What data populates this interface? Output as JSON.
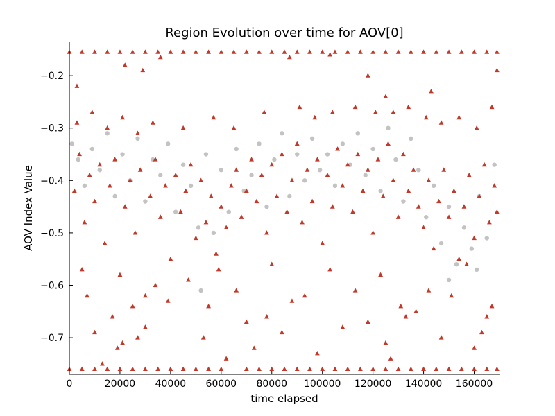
{
  "chart_data": {
    "type": "scatter",
    "title": "Region Evolution over time for AOV[0]",
    "xlabel": "time elapsed",
    "ylabel": "AOV Index Value",
    "xlim": [
      0,
      170000
    ],
    "ylim": [
      -0.77,
      -0.135
    ],
    "x_ticks": [
      0,
      20000,
      40000,
      60000,
      80000,
      100000,
      120000,
      140000,
      160000
    ],
    "x_tick_labels": [
      "0",
      "20000",
      "40000",
      "60000",
      "80000",
      "100000",
      "120000",
      "140000",
      "160000"
    ],
    "y_ticks": [
      -0.7,
      -0.6,
      -0.5,
      -0.4,
      -0.3,
      -0.2
    ],
    "y_tick_labels": [
      "−0.7",
      "−0.6",
      "−0.5",
      "−0.4",
      "−0.3",
      "−0.2"
    ],
    "grid": false,
    "spines": "left-bottom",
    "colors": {
      "background_series": "#c3c3c3",
      "foreground_series": "#c0392b"
    },
    "series": [
      {
        "marker": "circle",
        "color": "#c3c3c3",
        "points": [
          [
            1000,
            -0.33
          ],
          [
            3500,
            -0.36
          ],
          [
            6000,
            -0.41
          ],
          [
            9000,
            -0.34
          ],
          [
            12000,
            -0.38
          ],
          [
            15000,
            -0.31
          ],
          [
            18000,
            -0.43
          ],
          [
            21000,
            -0.35
          ],
          [
            24000,
            -0.4
          ],
          [
            27000,
            -0.32
          ],
          [
            30000,
            -0.44
          ],
          [
            33000,
            -0.36
          ],
          [
            36000,
            -0.39
          ],
          [
            39000,
            -0.33
          ],
          [
            42000,
            -0.46
          ],
          [
            45000,
            -0.37
          ],
          [
            48000,
            -0.41
          ],
          [
            51000,
            -0.49
          ],
          [
            54000,
            -0.35
          ],
          [
            57000,
            -0.5
          ],
          [
            60000,
            -0.38
          ],
          [
            63000,
            -0.46
          ],
          [
            66000,
            -0.34
          ],
          [
            69000,
            -0.42
          ],
          [
            72000,
            -0.39
          ],
          [
            75000,
            -0.33
          ],
          [
            78000,
            -0.45
          ],
          [
            81000,
            -0.36
          ],
          [
            84000,
            -0.31
          ],
          [
            87000,
            -0.43
          ],
          [
            90000,
            -0.35
          ],
          [
            93000,
            -0.4
          ],
          [
            96000,
            -0.32
          ],
          [
            99000,
            -0.38
          ],
          [
            102000,
            -0.35
          ],
          [
            105000,
            -0.41
          ],
          [
            108000,
            -0.33
          ],
          [
            111000,
            -0.37
          ],
          [
            114000,
            -0.31
          ],
          [
            117000,
            -0.39
          ],
          [
            120000,
            -0.34
          ],
          [
            123000,
            -0.42
          ],
          [
            126000,
            -0.3
          ],
          [
            129000,
            -0.36
          ],
          [
            132000,
            -0.44
          ],
          [
            135000,
            -0.32
          ],
          [
            138000,
            -0.38
          ],
          [
            141000,
            -0.47
          ],
          [
            144000,
            -0.41
          ],
          [
            147000,
            -0.52
          ],
          [
            150000,
            -0.45
          ],
          [
            153000,
            -0.56
          ],
          [
            156000,
            -0.49
          ],
          [
            159000,
            -0.53
          ],
          [
            162000,
            -0.43
          ],
          [
            165000,
            -0.51
          ],
          [
            168000,
            -0.37
          ],
          [
            52000,
            -0.61
          ],
          [
            150000,
            -0.59
          ],
          [
            161000,
            -0.57
          ]
        ]
      },
      {
        "marker": "triangle",
        "color": "#c0392b",
        "points": [
          [
            2000,
            -0.42
          ],
          [
            4000,
            -0.35
          ],
          [
            6000,
            -0.48
          ],
          [
            8000,
            -0.39
          ],
          [
            10000,
            -0.44
          ],
          [
            12000,
            -0.37
          ],
          [
            14000,
            -0.52
          ],
          [
            16000,
            -0.41
          ],
          [
            18000,
            -0.36
          ],
          [
            20000,
            -0.58
          ],
          [
            22000,
            -0.45
          ],
          [
            24000,
            -0.4
          ],
          [
            26000,
            -0.5
          ],
          [
            28000,
            -0.38
          ],
          [
            30000,
            -0.62
          ],
          [
            32000,
            -0.43
          ],
          [
            34000,
            -0.36
          ],
          [
            36000,
            -0.47
          ],
          [
            38000,
            -0.41
          ],
          [
            40000,
            -0.55
          ],
          [
            42000,
            -0.39
          ],
          [
            44000,
            -0.46
          ],
          [
            46000,
            -0.42
          ],
          [
            48000,
            -0.37
          ],
          [
            50000,
            -0.51
          ],
          [
            52000,
            -0.4
          ],
          [
            54000,
            -0.48
          ],
          [
            56000,
            -0.43
          ],
          [
            58000,
            -0.54
          ],
          [
            60000,
            -0.45
          ],
          [
            62000,
            -0.49
          ],
          [
            64000,
            -0.41
          ],
          [
            66000,
            -0.38
          ],
          [
            68000,
            -0.47
          ],
          [
            70000,
            -0.42
          ],
          [
            72000,
            -0.36
          ],
          [
            74000,
            -0.44
          ],
          [
            76000,
            -0.39
          ],
          [
            78000,
            -0.5
          ],
          [
            80000,
            -0.37
          ],
          [
            82000,
            -0.43
          ],
          [
            84000,
            -0.35
          ],
          [
            86000,
            -0.46
          ],
          [
            88000,
            -0.4
          ],
          [
            90000,
            -0.33
          ],
          [
            92000,
            -0.48
          ],
          [
            94000,
            -0.38
          ],
          [
            96000,
            -0.44
          ],
          [
            98000,
            -0.36
          ],
          [
            100000,
            -0.52
          ],
          [
            102000,
            -0.39
          ],
          [
            104000,
            -0.45
          ],
          [
            106000,
            -0.34
          ],
          [
            108000,
            -0.41
          ],
          [
            110000,
            -0.37
          ],
          [
            112000,
            -0.46
          ],
          [
            114000,
            -0.35
          ],
          [
            116000,
            -0.42
          ],
          [
            118000,
            -0.38
          ],
          [
            120000,
            -0.5
          ],
          [
            122000,
            -0.36
          ],
          [
            124000,
            -0.43
          ],
          [
            126000,
            -0.33
          ],
          [
            128000,
            -0.4
          ],
          [
            130000,
            -0.47
          ],
          [
            132000,
            -0.35
          ],
          [
            134000,
            -0.42
          ],
          [
            136000,
            -0.38
          ],
          [
            138000,
            -0.45
          ],
          [
            140000,
            -0.49
          ],
          [
            142000,
            -0.4
          ],
          [
            144000,
            -0.53
          ],
          [
            146000,
            -0.44
          ],
          [
            148000,
            -0.38
          ],
          [
            150000,
            -0.47
          ],
          [
            152000,
            -0.42
          ],
          [
            154000,
            -0.55
          ],
          [
            156000,
            -0.45
          ],
          [
            158000,
            -0.39
          ],
          [
            160000,
            -0.51
          ],
          [
            162000,
            -0.43
          ],
          [
            164000,
            -0.37
          ],
          [
            166000,
            -0.48
          ],
          [
            168000,
            -0.41
          ],
          [
            169000,
            -0.46
          ],
          [
            3000,
            -0.29
          ],
          [
            9000,
            -0.27
          ],
          [
            15000,
            -0.3
          ],
          [
            21000,
            -0.28
          ],
          [
            27000,
            -0.31
          ],
          [
            33000,
            -0.29
          ],
          [
            45000,
            -0.3
          ],
          [
            57000,
            -0.28
          ],
          [
            65000,
            -0.3
          ],
          [
            77000,
            -0.27
          ],
          [
            91000,
            -0.26
          ],
          [
            97000,
            -0.28
          ],
          [
            104000,
            -0.27
          ],
          [
            113000,
            -0.26
          ],
          [
            121000,
            -0.27
          ],
          [
            125000,
            -0.24
          ],
          [
            128000,
            -0.27
          ],
          [
            134000,
            -0.26
          ],
          [
            141000,
            -0.28
          ],
          [
            147000,
            -0.29
          ],
          [
            154000,
            -0.28
          ],
          [
            161000,
            -0.3
          ],
          [
            167000,
            -0.26
          ],
          [
            3000,
            -0.22
          ],
          [
            22000,
            -0.18
          ],
          [
            29000,
            -0.19
          ],
          [
            36000,
            -0.165
          ],
          [
            87000,
            -0.165
          ],
          [
            103000,
            -0.16
          ],
          [
            118000,
            -0.2
          ],
          [
            143000,
            -0.23
          ],
          [
            169000,
            -0.19
          ],
          [
            5000,
            -0.57
          ],
          [
            7000,
            -0.62
          ],
          [
            10000,
            -0.69
          ],
          [
            13000,
            -0.75
          ],
          [
            17000,
            -0.66
          ],
          [
            19000,
            -0.72
          ],
          [
            21000,
            -0.71
          ],
          [
            25000,
            -0.64
          ],
          [
            27000,
            -0.7
          ],
          [
            30000,
            -0.68
          ],
          [
            34000,
            -0.6
          ],
          [
            39000,
            -0.63
          ],
          [
            47000,
            -0.59
          ],
          [
            53000,
            -0.7
          ],
          [
            55000,
            -0.64
          ],
          [
            59000,
            -0.57
          ],
          [
            62000,
            -0.74
          ],
          [
            66000,
            -0.61
          ],
          [
            70000,
            -0.67
          ],
          [
            73000,
            -0.72
          ],
          [
            78000,
            -0.66
          ],
          [
            80000,
            -0.56
          ],
          [
            84000,
            -0.69
          ],
          [
            88000,
            -0.63
          ],
          [
            93000,
            -0.62
          ],
          [
            98000,
            -0.73
          ],
          [
            103000,
            -0.57
          ],
          [
            108000,
            -0.68
          ],
          [
            113000,
            -0.61
          ],
          [
            118000,
            -0.67
          ],
          [
            123000,
            -0.58
          ],
          [
            125000,
            -0.71
          ],
          [
            127000,
            -0.74
          ],
          [
            131000,
            -0.64
          ],
          [
            133000,
            -0.66
          ],
          [
            137000,
            -0.65
          ],
          [
            142000,
            -0.61
          ],
          [
            147000,
            -0.7
          ],
          [
            151000,
            -0.62
          ],
          [
            157000,
            -0.56
          ],
          [
            160000,
            -0.72
          ],
          [
            163000,
            -0.69
          ],
          [
            165000,
            -0.66
          ],
          [
            167000,
            -0.64
          ],
          [
            0,
            -0.155
          ],
          [
            5000,
            -0.155
          ],
          [
            10000,
            -0.155
          ],
          [
            15000,
            -0.155
          ],
          [
            20000,
            -0.155
          ],
          [
            25000,
            -0.155
          ],
          [
            30000,
            -0.155
          ],
          [
            35000,
            -0.155
          ],
          [
            40000,
            -0.155
          ],
          [
            45000,
            -0.155
          ],
          [
            50000,
            -0.155
          ],
          [
            55000,
            -0.155
          ],
          [
            60000,
            -0.155
          ],
          [
            65000,
            -0.155
          ],
          [
            70000,
            -0.155
          ],
          [
            75000,
            -0.155
          ],
          [
            80000,
            -0.155
          ],
          [
            85000,
            -0.155
          ],
          [
            90000,
            -0.155
          ],
          [
            95000,
            -0.155
          ],
          [
            100000,
            -0.155
          ],
          [
            105000,
            -0.155
          ],
          [
            110000,
            -0.155
          ],
          [
            115000,
            -0.155
          ],
          [
            120000,
            -0.155
          ],
          [
            125000,
            -0.155
          ],
          [
            130000,
            -0.155
          ],
          [
            135000,
            -0.155
          ],
          [
            140000,
            -0.155
          ],
          [
            145000,
            -0.155
          ],
          [
            150000,
            -0.155
          ],
          [
            155000,
            -0.155
          ],
          [
            160000,
            -0.155
          ],
          [
            165000,
            -0.155
          ],
          [
            169000,
            -0.155
          ],
          [
            0,
            -0.76
          ],
          [
            5000,
            -0.76
          ],
          [
            10000,
            -0.76
          ],
          [
            15000,
            -0.76
          ],
          [
            20000,
            -0.76
          ],
          [
            25000,
            -0.76
          ],
          [
            30000,
            -0.76
          ],
          [
            35000,
            -0.76
          ],
          [
            40000,
            -0.76
          ],
          [
            45000,
            -0.76
          ],
          [
            50000,
            -0.76
          ],
          [
            55000,
            -0.76
          ],
          [
            60000,
            -0.76
          ],
          [
            70000,
            -0.76
          ],
          [
            75000,
            -0.76
          ],
          [
            80000,
            -0.76
          ],
          [
            85000,
            -0.76
          ],
          [
            90000,
            -0.76
          ],
          [
            95000,
            -0.76
          ],
          [
            100000,
            -0.76
          ],
          [
            105000,
            -0.76
          ],
          [
            110000,
            -0.76
          ],
          [
            115000,
            -0.76
          ],
          [
            120000,
            -0.76
          ],
          [
            125000,
            -0.76
          ],
          [
            130000,
            -0.76
          ],
          [
            135000,
            -0.76
          ],
          [
            140000,
            -0.76
          ],
          [
            145000,
            -0.76
          ],
          [
            150000,
            -0.76
          ],
          [
            155000,
            -0.76
          ],
          [
            160000,
            -0.76
          ],
          [
            165000,
            -0.76
          ],
          [
            169000,
            -0.76
          ]
        ]
      }
    ]
  }
}
